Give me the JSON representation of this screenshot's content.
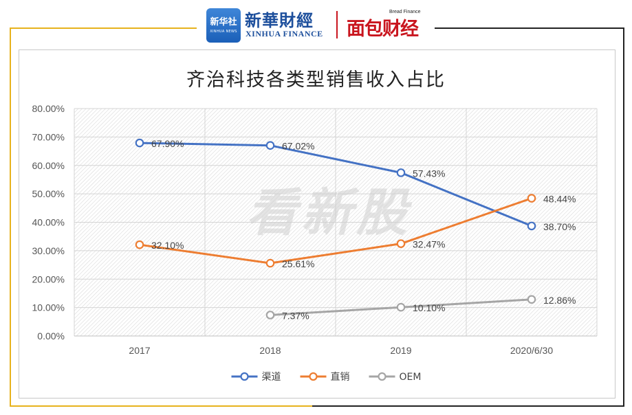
{
  "branding": {
    "badge_text": "新华社",
    "badge_sub": "XINHUA NEWS",
    "name": "新華財經",
    "name_en": "XINHUA FINANCE",
    "partner_small": "Bread Finance",
    "partner_name": "面包财经"
  },
  "watermark": "看新股",
  "chart_data": {
    "type": "line",
    "title": "齐治科技各类型销售收入占比",
    "categories": [
      "2017",
      "2018",
      "2019",
      "2020/6/30"
    ],
    "y_ticks": [
      "0.00%",
      "10.00%",
      "20.00%",
      "30.00%",
      "40.00%",
      "50.00%",
      "60.00%",
      "70.00%",
      "80.00%"
    ],
    "ylim": [
      0,
      80
    ],
    "grid": true,
    "legend_position": "bottom",
    "series": [
      {
        "name": "渠道",
        "color": "#4472c4",
        "values": [
          67.9,
          67.02,
          57.43,
          38.7
        ],
        "labels": [
          "67.90%",
          "67.02%",
          "57.43%",
          "38.70%"
        ]
      },
      {
        "name": "直销",
        "color": "#ed7d31",
        "values": [
          32.1,
          25.61,
          32.47,
          48.44
        ],
        "labels": [
          "32.10%",
          "25.61%",
          "32.47%",
          "48.44%"
        ]
      },
      {
        "name": "OEM",
        "color": "#a5a5a5",
        "values": [
          null,
          7.37,
          10.1,
          12.86
        ],
        "labels": [
          "",
          "7.37%",
          "10.10%",
          "12.86%"
        ]
      }
    ]
  }
}
